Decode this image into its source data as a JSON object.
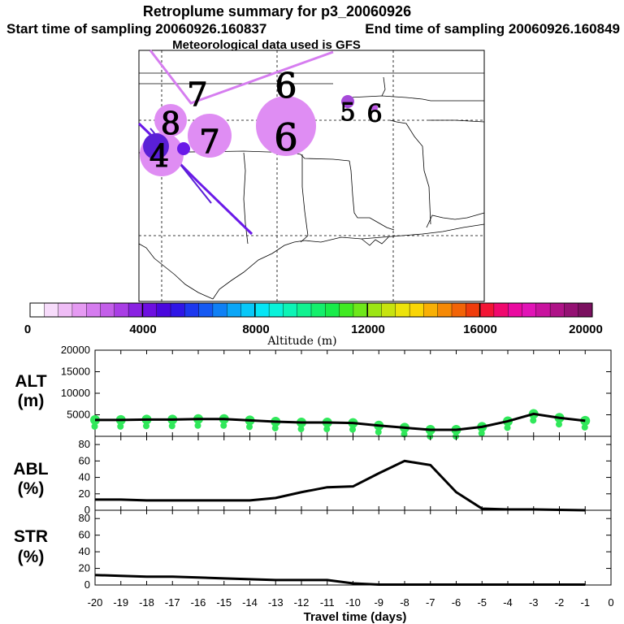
{
  "title": "Retroplume summary for p3_20060926",
  "subtitle_start": "Start time of sampling 20060926.160837",
  "subtitle_end": "End time of sampling 20060926.160849",
  "subtitle_met": "Meteorological data used is GFS",
  "map": {
    "description_labels": [
      "8",
      "7",
      "7",
      "6",
      "6",
      "5",
      "6",
      "4"
    ],
    "clusters": [
      {
        "label": "8",
        "color": "#d67df0"
      },
      {
        "label": "7",
        "color": "#d67df0"
      },
      {
        "label": "6",
        "color": "#d67df0"
      },
      {
        "label": "5",
        "color": "#a64ad9"
      },
      {
        "label": "6",
        "color": "#c05ae8"
      },
      {
        "label": "4",
        "color": "#5a1fd6"
      }
    ]
  },
  "colorbar": {
    "label": "Altitude (m)",
    "ticks": [
      "0",
      "4000",
      "8000",
      "12000",
      "16000",
      "20000"
    ],
    "colors": [
      "#ffffff",
      "#f7dcfb",
      "#efbdf6",
      "#e59af2",
      "#d57cef",
      "#c35fe9",
      "#a93ee5",
      "#8a22e2",
      "#6d0fe0",
      "#4a07dd",
      "#2f16e6",
      "#1d38ee",
      "#1559f2",
      "#0f80f5",
      "#0ba6f7",
      "#08c8f8",
      "#06e5f5",
      "#0af2da",
      "#0df4b6",
      "#10f290",
      "#14ef6c",
      "#18ec4a",
      "#40ea22",
      "#6ee81a",
      "#9ce514",
      "#c7e30f",
      "#ece30b",
      "#f9d506",
      "#f8b005",
      "#f68905",
      "#f26407",
      "#ef3c0c",
      "#f21535",
      "#f0096e",
      "#ea0aa0",
      "#e114b6",
      "#c8139e",
      "#ae1287",
      "#941173",
      "#7a105f"
    ]
  },
  "chart_data": [
    {
      "type": "line",
      "name": "ALT",
      "title_line1": "ALT",
      "title_line2": "(m)",
      "x": [
        -20,
        -19,
        -18,
        -17,
        -16,
        -15,
        -14,
        -13,
        -12,
        -11,
        -10,
        -9,
        -8,
        -7,
        -6,
        -5,
        -4,
        -3,
        -2,
        -1
      ],
      "values": [
        3800,
        3800,
        3900,
        3900,
        4000,
        4000,
        3700,
        3400,
        3200,
        3200,
        3100,
        2500,
        2000,
        1500,
        1500,
        2200,
        3500,
        5200,
        4300,
        3600
      ],
      "ylim": [
        0,
        20000
      ],
      "yticks": [
        5000,
        10000,
        15000,
        20000
      ],
      "dots_color": "#30e85a"
    },
    {
      "type": "line",
      "name": "ABL",
      "title_line1": "ABL",
      "title_line2": "(%)",
      "x": [
        -20,
        -19,
        -18,
        -17,
        -16,
        -15,
        -14,
        -13,
        -12,
        -11,
        -10,
        -9,
        -8,
        -7,
        -6,
        -5,
        -4,
        -3,
        -2,
        -1
      ],
      "values": [
        13,
        13,
        12,
        12,
        12,
        12,
        12,
        15,
        22,
        28,
        29,
        45,
        60,
        55,
        22,
        2,
        1,
        1,
        0.5,
        0
      ],
      "ylim": [
        0,
        90
      ],
      "yticks": [
        0,
        20,
        40,
        60,
        80
      ]
    },
    {
      "type": "line",
      "name": "STR",
      "title_line1": "STR",
      "title_line2": "(%)",
      "x": [
        -20,
        -19,
        -18,
        -17,
        -16,
        -15,
        -14,
        -13,
        -12,
        -11,
        -10,
        -9,
        -8,
        -7,
        -6,
        -5,
        -4,
        -3,
        -2,
        -1
      ],
      "values": [
        12,
        11,
        10,
        10,
        9,
        8,
        7,
        6,
        6,
        6,
        2,
        0.5,
        0.5,
        0.5,
        0.5,
        0.5,
        0.5,
        0.5,
        0.5,
        0.5
      ],
      "ylim": [
        0,
        90
      ],
      "yticks": [
        0,
        20,
        40,
        60,
        80
      ]
    }
  ],
  "xaxis": {
    "label": "Travel time (days)",
    "ticks": [
      -20,
      -19,
      -18,
      -17,
      -16,
      -15,
      -14,
      -13,
      -12,
      -11,
      -10,
      -9,
      -8,
      -7,
      -6,
      -5,
      -4,
      -3,
      -2,
      -1,
      0
    ],
    "xlim": [
      -20,
      0
    ]
  }
}
